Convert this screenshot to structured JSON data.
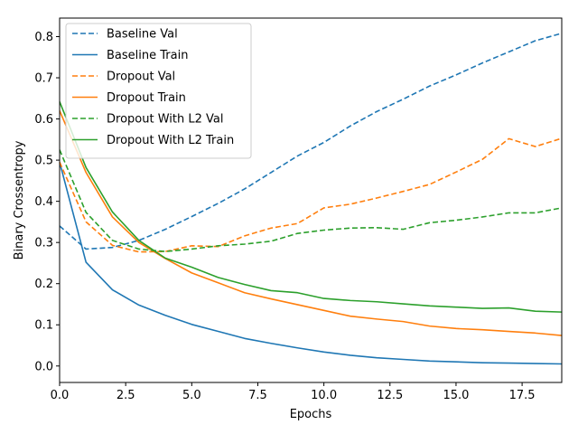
{
  "chart_data": {
    "type": "line",
    "title": "",
    "xlabel": "Epochs",
    "ylabel": "Binary Crossentropy",
    "xlim": [
      0,
      19
    ],
    "ylim": [
      -0.04,
      0.845
    ],
    "xticks": [
      0,
      2.5,
      5,
      7.5,
      10,
      12.5,
      15,
      17.5
    ],
    "xtick_labels": [
      "0.0",
      "2.5",
      "5.0",
      "7.5",
      "10.0",
      "12.5",
      "15.0",
      "17.5"
    ],
    "yticks": [
      0,
      0.1,
      0.2,
      0.3,
      0.4,
      0.5,
      0.6,
      0.7,
      0.8
    ],
    "ytick_labels": [
      "0.0",
      "0.1",
      "0.2",
      "0.3",
      "0.4",
      "0.5",
      "0.6",
      "0.7",
      "0.8"
    ],
    "grid": false,
    "legend_position": "top-left",
    "x": [
      0,
      1,
      2,
      3,
      4,
      5,
      6,
      7,
      8,
      9,
      10,
      11,
      12,
      13,
      14,
      15,
      16,
      17,
      18,
      19
    ],
    "series": [
      {
        "name": "Baseline Val",
        "color": "#1f77b4",
        "dash": true,
        "values": [
          0.34,
          0.284,
          0.288,
          0.305,
          0.332,
          0.363,
          0.395,
          0.43,
          0.47,
          0.51,
          0.543,
          0.583,
          0.618,
          0.648,
          0.68,
          0.707,
          0.736,
          0.763,
          0.79,
          0.808
        ]
      },
      {
        "name": "Baseline Train",
        "color": "#1f77b4",
        "dash": false,
        "values": [
          0.495,
          0.252,
          0.185,
          0.148,
          0.123,
          0.101,
          0.084,
          0.067,
          0.055,
          0.044,
          0.034,
          0.026,
          0.02,
          0.016,
          0.012,
          0.01,
          0.008,
          0.007,
          0.006,
          0.005
        ]
      },
      {
        "name": "Dropout Val",
        "color": "#ff7f0e",
        "dash": true,
        "values": [
          0.495,
          0.35,
          0.293,
          0.277,
          0.278,
          0.292,
          0.29,
          0.316,
          0.335,
          0.346,
          0.384,
          0.393,
          0.408,
          0.424,
          0.441,
          0.471,
          0.502,
          0.552,
          0.533,
          0.553
        ]
      },
      {
        "name": "Dropout Train",
        "color": "#ff7f0e",
        "dash": false,
        "values": [
          0.62,
          0.47,
          0.362,
          0.3,
          0.261,
          0.226,
          0.202,
          0.178,
          0.163,
          0.149,
          0.135,
          0.121,
          0.114,
          0.108,
          0.097,
          0.091,
          0.088,
          0.084,
          0.08,
          0.074
        ]
      },
      {
        "name": "Dropout With L2 Val",
        "color": "#2ca02c",
        "dash": true,
        "values": [
          0.525,
          0.373,
          0.305,
          0.284,
          0.278,
          0.284,
          0.292,
          0.296,
          0.303,
          0.322,
          0.33,
          0.335,
          0.336,
          0.332,
          0.348,
          0.354,
          0.362,
          0.372,
          0.372,
          0.384
        ]
      },
      {
        "name": "Dropout With L2 Train",
        "color": "#2ca02c",
        "dash": false,
        "values": [
          0.642,
          0.482,
          0.374,
          0.305,
          0.262,
          0.24,
          0.215,
          0.198,
          0.183,
          0.178,
          0.164,
          0.159,
          0.156,
          0.151,
          0.146,
          0.143,
          0.14,
          0.141,
          0.133,
          0.131
        ]
      }
    ]
  }
}
